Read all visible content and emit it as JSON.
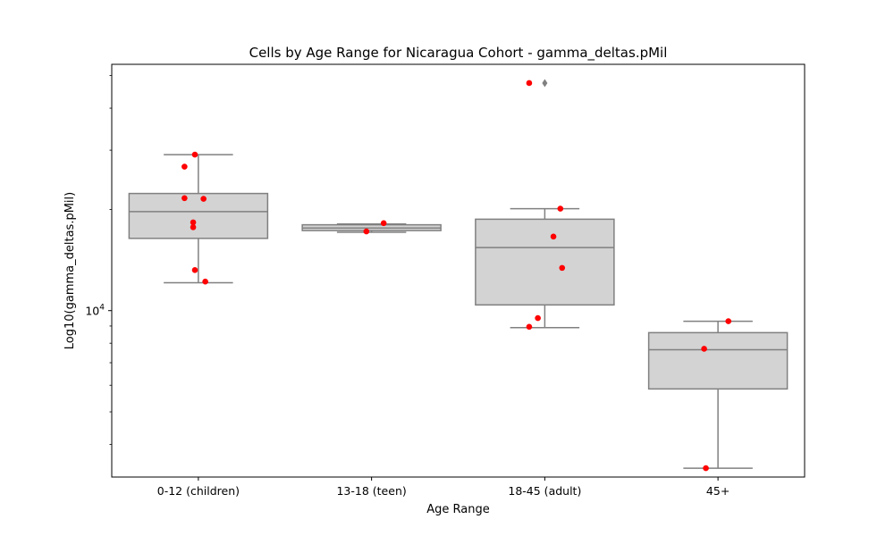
{
  "chart_data": {
    "type": "box",
    "title": "Cells by Age Range for Nicaragua Cohort - gamma_deltas.pMil",
    "xlabel": "Age Range",
    "ylabel": "Log10(gamma_deltas.pMil)",
    "yscale": "log",
    "ylim": [
      3200,
      54000
    ],
    "ytick_label": {
      "base": "10",
      "exp": "4",
      "value": 10000
    },
    "categories": [
      "0-12 (children)",
      "13-18 (teen)",
      "18-45 (adult)",
      "45+"
    ],
    "boxes": [
      {
        "whislo": 12100,
        "q1": 16400,
        "med": 19700,
        "q3": 22300,
        "whishi": 29100,
        "fliers": []
      },
      {
        "whislo": 17100,
        "q1": 17300,
        "med": 17600,
        "q3": 18000,
        "whishi": 18100,
        "fliers": []
      },
      {
        "whislo": 8900,
        "q1": 10400,
        "med": 15400,
        "q3": 18700,
        "whishi": 20100,
        "fliers": [
          47500
        ]
      },
      {
        "whislo": 3400,
        "q1": 5850,
        "med": 7650,
        "q3": 8600,
        "whishi": 9300,
        "fliers": []
      }
    ],
    "points": [
      [
        29100,
        26800,
        21600,
        21500,
        18300,
        17700,
        13200,
        12200
      ],
      [
        18200,
        17200
      ],
      [
        47500,
        20100,
        16600,
        13400,
        9500,
        8950
      ],
      [
        9300,
        7700,
        3400
      ]
    ],
    "point_offsets": [
      [
        -0.02,
        -0.08,
        -0.08,
        0.03,
        -0.03,
        -0.03,
        -0.02,
        0.04
      ],
      [
        0.07,
        -0.03
      ],
      [
        -0.09,
        0.09,
        0.05,
        0.1,
        -0.04,
        -0.09
      ],
      [
        0.06,
        -0.08,
        -0.07
      ]
    ],
    "colors": {
      "box_fill": "#d3d3d3",
      "box_edge": "#808080",
      "point": "#ff0000"
    }
  }
}
